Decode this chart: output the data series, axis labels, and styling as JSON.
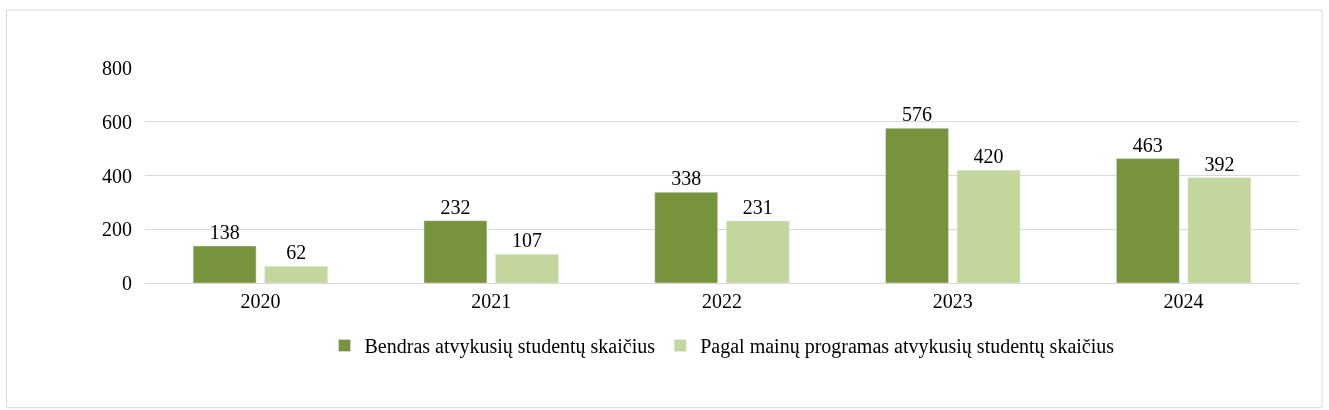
{
  "chart_data": {
    "type": "bar",
    "categories": [
      "2020",
      "2021",
      "2022",
      "2023",
      "2024"
    ],
    "series": [
      {
        "name": "Bendras atvykusių studentų skaičius",
        "color": "#77933c",
        "values": [
          138,
          232,
          338,
          576,
          463
        ]
      },
      {
        "name": "Pagal mainų programas atvykusių studentų skaičius",
        "color": "#c3d69b",
        "values": [
          62,
          107,
          231,
          420,
          392
        ]
      }
    ],
    "ylim": [
      0,
      800
    ],
    "yticks": [
      0,
      200,
      400,
      600,
      800
    ],
    "grid": "y",
    "legend": "bottom",
    "data_labels": true
  }
}
